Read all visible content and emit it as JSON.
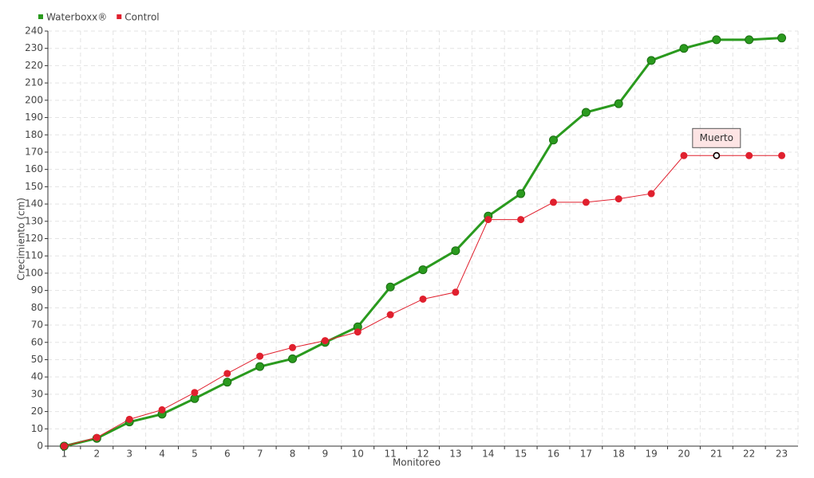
{
  "chart_data": {
    "type": "line",
    "x_label": "Monitoreo",
    "y_label": "Crecimiento (cm)",
    "categories": [
      "1",
      "2",
      "3",
      "4",
      "5",
      "6",
      "7",
      "8",
      "9",
      "10",
      "11",
      "12",
      "13",
      "14",
      "15",
      "16",
      "17",
      "18",
      "19",
      "20",
      "21",
      "22",
      "23"
    ],
    "series": [
      {
        "name": "Waterboxx®",
        "color": "#2a9a1e",
        "values": [
          0,
          4.5,
          14,
          18.5,
          27.5,
          37,
          46,
          50.5,
          60,
          69,
          92,
          102,
          113,
          133,
          146,
          177,
          193,
          198,
          223,
          230,
          235,
          235,
          236
        ]
      },
      {
        "name": "Control",
        "color": "#e0202e",
        "values": [
          0,
          5,
          15.5,
          21,
          31,
          42,
          52,
          57,
          61,
          66,
          76,
          85,
          89,
          131,
          131,
          141,
          141,
          143,
          146,
          168,
          168,
          168,
          168
        ]
      }
    ],
    "annotations": [
      {
        "text": "Muerto",
        "series": "Control",
        "category": "21"
      }
    ],
    "ylim": [
      0,
      240
    ],
    "yticks": [
      0,
      10,
      20,
      30,
      40,
      50,
      60,
      70,
      80,
      90,
      100,
      110,
      120,
      130,
      140,
      150,
      160,
      170,
      180,
      190,
      200,
      210,
      220,
      230,
      240
    ],
    "grid": true
  }
}
